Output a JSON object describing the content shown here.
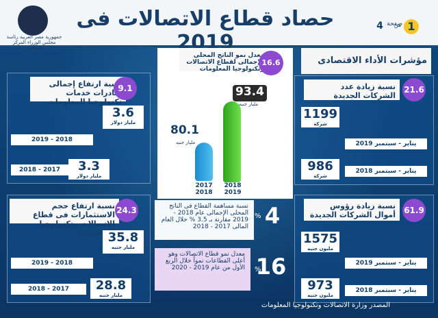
{
  "header": {
    "title": "حصاد قطاع الاتصالات فى 2019",
    "page_label": "صفحة",
    "page_current": "1",
    "page_of": "من",
    "page_total": "4"
  },
  "logo_text": "جمهورية مصر العربية رئاسة مجلس الوزراء المركز الإعلامي",
  "section_title": "مؤشرات الأداء الاقتصادى",
  "left_top": {
    "pct": "9.1",
    "label": "نسبة ارتفاع إجمالى صادرات خدمات تكنولوجيا المعلومات",
    "v1": "3.6",
    "u1": "مليار دولار",
    "y1": "2019 - 2018",
    "v2": "3.3",
    "u2": "مليار دولار",
    "y2": "2018 - 2017"
  },
  "left_bottom": {
    "pct": "24.3",
    "label": "نسبة ارتفاع حجم الاستثمارات فى قطاع الاتصالات وتكنولوجيا المعلومات",
    "v1": "35.8",
    "u1": "مليار جنيه",
    "y1": "2019 - 2018",
    "v2": "28.8",
    "u2": "مليار جنيه",
    "y2": "2018 - 2017"
  },
  "center": {
    "pct": "16.6",
    "label": "معدل نمو الناتج المحلى الإجمالى لقطاع الاتصالات وتكنولوجيا المعلومات",
    "v_low": "80.1",
    "v_high": "93.4",
    "unit": "مليار جنيه",
    "y_low": "2017 2018",
    "y_high": "2018 2019"
  },
  "center_info1": {
    "big": "4",
    "pct_sign": "%",
    "text": "نسبة مساهمة القطاع فى الناتج المحلى الإجمالى عام 2018 - 2019 مقارنة بـ 3.5 % خلال العام المالى 2017 - 2018"
  },
  "center_info2": {
    "big": "16",
    "pct_sign": "%",
    "text": "معدل نمو قطاع الاتصالات وهو أعلى القطاعات نمواً خلال الربع الأول من عام 2019 - 2020"
  },
  "right_top": {
    "pct": "21.6",
    "label": "نسبة زيادة عدد الشركات الجديدة",
    "v1": "1199",
    "u1": "شركة",
    "y1": "يناير - سبتمبر 2019",
    "v2": "986",
    "u2": "شركة",
    "y2": "يناير - سبتمبر 2018"
  },
  "right_bottom": {
    "pct": "61.9",
    "label": "نسبة زيادة رؤوس أموال الشركات الجديدة",
    "v1": "1575",
    "u1": "مليون جنيه",
    "y1": "يناير - سبتمبر 2019",
    "v2": "973",
    "u2": "مليون جنيه",
    "y2": "يناير - سبتمبر 2018"
  },
  "source": "المصدر وزارة الاتصالات وتكنولوجيا المعلومات",
  "colors": {
    "accent": "#8c4ad1",
    "navy": "#163e66",
    "green": "#4fc12c",
    "blue": "#2ba1e0"
  }
}
